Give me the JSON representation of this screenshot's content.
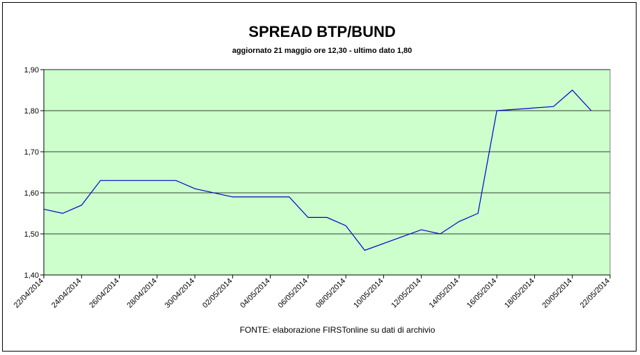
{
  "chart_data": {
    "type": "line",
    "title": "SPREAD BTP/BUND",
    "subtitle": "aggiornato 21 maggio ore 12,30 - ultimo dato 1,80",
    "source": "FONTE: elaborazione FIRSTonline su dati di archivio",
    "ylim": [
      1.4,
      1.9
    ],
    "y_ticks": [
      "1,40",
      "1,50",
      "1,60",
      "1,70",
      "1,80",
      "1,90"
    ],
    "x_ticks": [
      "22/04/2014",
      "24/04/2014",
      "26/04/2014",
      "28/04/2014",
      "30/04/2014",
      "02/05/2014",
      "04/05/2014",
      "06/05/2014",
      "08/05/2014",
      "10/05/2014",
      "12/05/2014",
      "14/05/2014",
      "16/05/2014",
      "18/05/2014",
      "20/05/2014",
      "22/05/2014"
    ],
    "grid": true,
    "plot_background": "#ccffcc",
    "series": [
      {
        "color": "#0000cc",
        "points": [
          {
            "x": "22/04/2014",
            "y": 1.56
          },
          {
            "x": "23/04/2014",
            "y": 1.55
          },
          {
            "x": "24/04/2014",
            "y": 1.57
          },
          {
            "x": "25/04/2014",
            "y": 1.63
          },
          {
            "x": "29/04/2014",
            "y": 1.63
          },
          {
            "x": "30/04/2014",
            "y": 1.61
          },
          {
            "x": "02/05/2014",
            "y": 1.59
          },
          {
            "x": "05/05/2014",
            "y": 1.59
          },
          {
            "x": "06/05/2014",
            "y": 1.54
          },
          {
            "x": "07/05/2014",
            "y": 1.54
          },
          {
            "x": "08/05/2014",
            "y": 1.52
          },
          {
            "x": "09/05/2014",
            "y": 1.46
          },
          {
            "x": "12/05/2014",
            "y": 1.51
          },
          {
            "x": "13/05/2014",
            "y": 1.5
          },
          {
            "x": "14/05/2014",
            "y": 1.53
          },
          {
            "x": "15/05/2014",
            "y": 1.55
          },
          {
            "x": "16/05/2014",
            "y": 1.8
          },
          {
            "x": "19/05/2014",
            "y": 1.81
          },
          {
            "x": "20/05/2014",
            "y": 1.85
          },
          {
            "x": "21/05/2014",
            "y": 1.8
          }
        ]
      }
    ]
  }
}
